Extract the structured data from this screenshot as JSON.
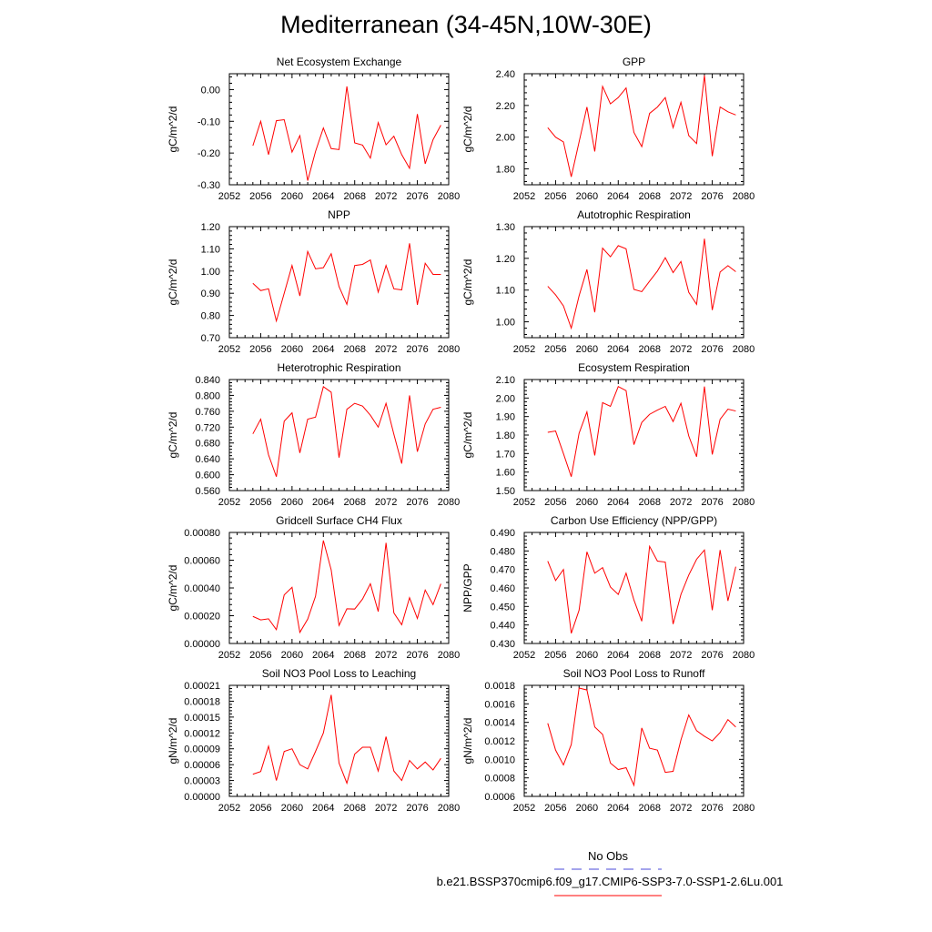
{
  "title": "Mediterranean (34-45N,10W-30E)",
  "legend": {
    "obs_label": "No Obs",
    "obs_color": "#4a4ad8",
    "case_label": "b.e21.BSSP370cmip6.f09_g17.CMIP6-SSP3-7.0-SSP1-2.6Lu.001",
    "case_color": "#ff0000"
  },
  "chart_data": [
    {
      "type": "line",
      "title": "Net Ecosystem Exchange",
      "ylabel": "gC/m^2/d",
      "xlim": [
        2052,
        2080
      ],
      "xticks": [
        2052,
        2056,
        2060,
        2064,
        2068,
        2072,
        2076,
        2080
      ],
      "ylim": [
        -0.3,
        0.05
      ],
      "yticks": [
        -0.3,
        -0.2,
        -0.1,
        0.0
      ],
      "ytick_decimals": 2,
      "x": [
        2055,
        2056,
        2057,
        2058,
        2059,
        2060,
        2061,
        2062,
        2063,
        2064,
        2065,
        2066,
        2067,
        2068,
        2069,
        2070,
        2071,
        2072,
        2073,
        2074,
        2075,
        2076,
        2077,
        2078,
        2079
      ],
      "series": [
        {
          "color": "#ff0000",
          "values": [
            -0.177,
            -0.1,
            -0.205,
            -0.098,
            -0.095,
            -0.197,
            -0.145,
            -0.287,
            -0.195,
            -0.121,
            -0.186,
            -0.189,
            0.01,
            -0.168,
            -0.175,
            -0.216,
            -0.104,
            -0.174,
            -0.147,
            -0.205,
            -0.248,
            -0.077,
            -0.234,
            -0.158,
            -0.112
          ]
        }
      ]
    },
    {
      "type": "line",
      "title": "GPP",
      "ylabel": "gC/m^2/d",
      "xlim": [
        2052,
        2080
      ],
      "xticks": [
        2052,
        2056,
        2060,
        2064,
        2068,
        2072,
        2076,
        2080
      ],
      "ylim": [
        1.7,
        2.4
      ],
      "yticks": [
        1.8,
        2.0,
        2.2,
        2.4
      ],
      "ytick_decimals": 2,
      "x": [
        2055,
        2056,
        2057,
        2058,
        2059,
        2060,
        2061,
        2062,
        2063,
        2064,
        2065,
        2066,
        2067,
        2068,
        2069,
        2070,
        2071,
        2072,
        2073,
        2074,
        2075,
        2076,
        2077,
        2078,
        2079
      ],
      "series": [
        {
          "color": "#ff0000",
          "values": [
            2.06,
            2.0,
            1.97,
            1.75,
            1.97,
            2.19,
            1.91,
            2.32,
            2.21,
            2.25,
            2.31,
            2.03,
            1.94,
            2.15,
            2.19,
            2.25,
            2.06,
            2.22,
            2.01,
            1.96,
            2.39,
            1.88,
            2.19,
            2.16,
            2.14
          ]
        }
      ]
    },
    {
      "type": "line",
      "title": "NPP",
      "ylabel": "gC/m^2/d",
      "xlim": [
        2052,
        2080
      ],
      "xticks": [
        2052,
        2056,
        2060,
        2064,
        2068,
        2072,
        2076,
        2080
      ],
      "ylim": [
        0.7,
        1.2
      ],
      "yticks": [
        0.7,
        0.8,
        0.9,
        1.0,
        1.1,
        1.2
      ],
      "ytick_decimals": 2,
      "x": [
        2055,
        2056,
        2057,
        2058,
        2059,
        2060,
        2061,
        2062,
        2063,
        2064,
        2065,
        2066,
        2067,
        2068,
        2069,
        2070,
        2071,
        2072,
        2073,
        2074,
        2075,
        2076,
        2077,
        2078,
        2079
      ],
      "series": [
        {
          "color": "#ff0000",
          "values": [
            0.945,
            0.912,
            0.92,
            0.775,
            0.9,
            1.025,
            0.888,
            1.088,
            1.01,
            1.015,
            1.078,
            0.93,
            0.85,
            1.025,
            1.03,
            1.05,
            0.905,
            1.025,
            0.92,
            0.915,
            1.125,
            0.848,
            1.035,
            0.985,
            0.985
          ]
        }
      ]
    },
    {
      "type": "line",
      "title": "Autotrophic Respiration",
      "ylabel": "gC/m^2/d",
      "xlim": [
        2052,
        2080
      ],
      "xticks": [
        2052,
        2056,
        2060,
        2064,
        2068,
        2072,
        2076,
        2080
      ],
      "ylim": [
        0.95,
        1.3
      ],
      "yticks": [
        1.0,
        1.1,
        1.2,
        1.3
      ],
      "ytick_decimals": 2,
      "x": [
        2055,
        2056,
        2057,
        2058,
        2059,
        2060,
        2061,
        2062,
        2063,
        2064,
        2065,
        2066,
        2067,
        2068,
        2069,
        2070,
        2071,
        2072,
        2073,
        2074,
        2075,
        2076,
        2077,
        2078,
        2079
      ],
      "series": [
        {
          "color": "#ff0000",
          "values": [
            1.112,
            1.085,
            1.05,
            0.98,
            1.082,
            1.165,
            1.03,
            1.232,
            1.205,
            1.24,
            1.23,
            1.102,
            1.095,
            1.128,
            1.16,
            1.202,
            1.155,
            1.19,
            1.093,
            1.055,
            1.262,
            1.037,
            1.157,
            1.177,
            1.158
          ]
        }
      ]
    },
    {
      "type": "line",
      "title": "Heterotrophic Respiration",
      "ylabel": "gC/m^2/d",
      "xlim": [
        2052,
        2080
      ],
      "xticks": [
        2052,
        2056,
        2060,
        2064,
        2068,
        2072,
        2076,
        2080
      ],
      "ylim": [
        0.56,
        0.84
      ],
      "yticks": [
        0.56,
        0.6,
        0.64,
        0.68,
        0.72,
        0.76,
        0.8,
        0.84
      ],
      "ytick_decimals": 3,
      "x": [
        2055,
        2056,
        2057,
        2058,
        2059,
        2060,
        2061,
        2062,
        2063,
        2064,
        2065,
        2066,
        2067,
        2068,
        2069,
        2070,
        2071,
        2072,
        2073,
        2074,
        2075,
        2076,
        2077,
        2078,
        2079
      ],
      "series": [
        {
          "color": "#ff0000",
          "values": [
            0.703,
            0.74,
            0.65,
            0.595,
            0.735,
            0.756,
            0.655,
            0.74,
            0.745,
            0.822,
            0.808,
            0.643,
            0.765,
            0.78,
            0.773,
            0.75,
            0.72,
            0.78,
            0.702,
            0.628,
            0.8,
            0.658,
            0.728,
            0.765,
            0.77
          ]
        }
      ]
    },
    {
      "type": "line",
      "title": "Ecosystem Respiration",
      "ylabel": "gC/m^2/d",
      "xlim": [
        2052,
        2080
      ],
      "xticks": [
        2052,
        2056,
        2060,
        2064,
        2068,
        2072,
        2076,
        2080
      ],
      "ylim": [
        1.5,
        2.1
      ],
      "yticks": [
        1.5,
        1.6,
        1.7,
        1.8,
        1.9,
        2.0,
        2.1
      ],
      "ytick_decimals": 2,
      "x": [
        2055,
        2056,
        2057,
        2058,
        2059,
        2060,
        2061,
        2062,
        2063,
        2064,
        2065,
        2066,
        2067,
        2068,
        2069,
        2070,
        2071,
        2072,
        2073,
        2074,
        2075,
        2076,
        2077,
        2078,
        2079
      ],
      "series": [
        {
          "color": "#ff0000",
          "values": [
            1.815,
            1.822,
            1.7,
            1.575,
            1.81,
            1.925,
            1.69,
            1.975,
            1.955,
            2.062,
            2.04,
            1.748,
            1.868,
            1.912,
            1.935,
            1.955,
            1.873,
            1.972,
            1.795,
            1.683,
            2.062,
            1.695,
            1.885,
            1.94,
            1.93
          ]
        }
      ]
    },
    {
      "type": "line",
      "title": "Gridcell Surface CH4 Flux",
      "ylabel": "gC/m^2/d",
      "xlim": [
        2052,
        2080
      ],
      "xticks": [
        2052,
        2056,
        2060,
        2064,
        2068,
        2072,
        2076,
        2080
      ],
      "ylim": [
        0,
        0.0008
      ],
      "yticks": [
        0,
        0.0002,
        0.0004,
        0.0006,
        0.0008
      ],
      "ytick_decimals": 5,
      "x": [
        2055,
        2056,
        2057,
        2058,
        2059,
        2060,
        2061,
        2062,
        2063,
        2064,
        2065,
        2066,
        2067,
        2068,
        2069,
        2070,
        2071,
        2072,
        2073,
        2074,
        2075,
        2076,
        2077,
        2078,
        2079
      ],
      "series": [
        {
          "color": "#ff0000",
          "values": [
            0.000195,
            0.00017,
            0.000178,
            0.0001,
            0.00035,
            0.000405,
            8e-05,
            0.000175,
            0.00034,
            0.000742,
            0.00053,
            0.00013,
            0.00025,
            0.000248,
            0.00032,
            0.00043,
            0.00023,
            0.000725,
            0.00022,
            0.000135,
            0.00033,
            0.00018,
            0.000385,
            0.00028,
            0.00043
          ]
        }
      ]
    },
    {
      "type": "line",
      "title": "Carbon Use Efficiency (NPP/GPP)",
      "ylabel": "NPP/GPP",
      "xlim": [
        2052,
        2080
      ],
      "xticks": [
        2052,
        2056,
        2060,
        2064,
        2068,
        2072,
        2076,
        2080
      ],
      "ylim": [
        0.43,
        0.49
      ],
      "yticks": [
        0.43,
        0.44,
        0.45,
        0.46,
        0.47,
        0.48,
        0.49
      ],
      "ytick_decimals": 3,
      "x": [
        2055,
        2056,
        2057,
        2058,
        2059,
        2060,
        2061,
        2062,
        2063,
        2064,
        2065,
        2066,
        2067,
        2068,
        2069,
        2070,
        2071,
        2072,
        2073,
        2074,
        2075,
        2076,
        2077,
        2078,
        2079
      ],
      "series": [
        {
          "color": "#ff0000",
          "values": [
            0.4745,
            0.464,
            0.47,
            0.4355,
            0.448,
            0.4795,
            0.468,
            0.471,
            0.4605,
            0.4565,
            0.468,
            0.4535,
            0.442,
            0.4825,
            0.4745,
            0.474,
            0.4405,
            0.4565,
            0.467,
            0.4755,
            0.4805,
            0.448,
            0.4805,
            0.453,
            0.4715
          ]
        }
      ]
    },
    {
      "type": "line",
      "title": "Soil NO3 Pool Loss to Leaching",
      "ylabel": "gN/m^2/d",
      "xlim": [
        2052,
        2080
      ],
      "xticks": [
        2052,
        2056,
        2060,
        2064,
        2068,
        2072,
        2076,
        2080
      ],
      "ylim": [
        0,
        0.00021
      ],
      "yticks": [
        0,
        3e-05,
        6e-05,
        9e-05,
        0.00012,
        0.00015,
        0.00018,
        0.00021
      ],
      "ytick_decimals": 5,
      "x": [
        2055,
        2056,
        2057,
        2058,
        2059,
        2060,
        2061,
        2062,
        2063,
        2064,
        2065,
        2066,
        2067,
        2068,
        2069,
        2070,
        2071,
        2072,
        2073,
        2074,
        2075,
        2076,
        2077,
        2078,
        2079
      ],
      "series": [
        {
          "color": "#ff0000",
          "values": [
            4.2e-05,
            4.7e-05,
            9.5e-05,
            3e-05,
            8.5e-05,
            9e-05,
            6e-05,
            5.2e-05,
            8.5e-05,
            0.00012,
            0.000192,
            6.3e-05,
            2.5e-05,
            8e-05,
            9.3e-05,
            9.3e-05,
            4.8e-05,
            0.000113,
            4.8e-05,
            3e-05,
            6.8e-05,
            5.2e-05,
            6.5e-05,
            5e-05,
            7.2e-05
          ]
        }
      ]
    },
    {
      "type": "line",
      "title": "Soil NO3 Pool Loss to Runoff",
      "ylabel": "gN/m^2/d",
      "xlim": [
        2052,
        2080
      ],
      "xticks": [
        2052,
        2056,
        2060,
        2064,
        2068,
        2072,
        2076,
        2080
      ],
      "ylim": [
        0.0006,
        0.0018
      ],
      "yticks": [
        0.0006,
        0.0008,
        0.001,
        0.0012,
        0.0014,
        0.0016,
        0.0018
      ],
      "ytick_decimals": 4,
      "x": [
        2055,
        2056,
        2057,
        2058,
        2059,
        2060,
        2061,
        2062,
        2063,
        2064,
        2065,
        2066,
        2067,
        2068,
        2069,
        2070,
        2071,
        2072,
        2073,
        2074,
        2075,
        2076,
        2077,
        2078,
        2079
      ],
      "series": [
        {
          "color": "#ff0000",
          "values": [
            0.00139,
            0.0011,
            0.00094,
            0.00116,
            0.00177,
            0.00175,
            0.00135,
            0.00127,
            0.00096,
            0.00089,
            0.00091,
            0.00072,
            0.00134,
            0.00112,
            0.0011,
            0.00086,
            0.00087,
            0.00121,
            0.00148,
            0.00131,
            0.00125,
            0.0012,
            0.00129,
            0.00143,
            0.00135
          ]
        }
      ]
    }
  ]
}
